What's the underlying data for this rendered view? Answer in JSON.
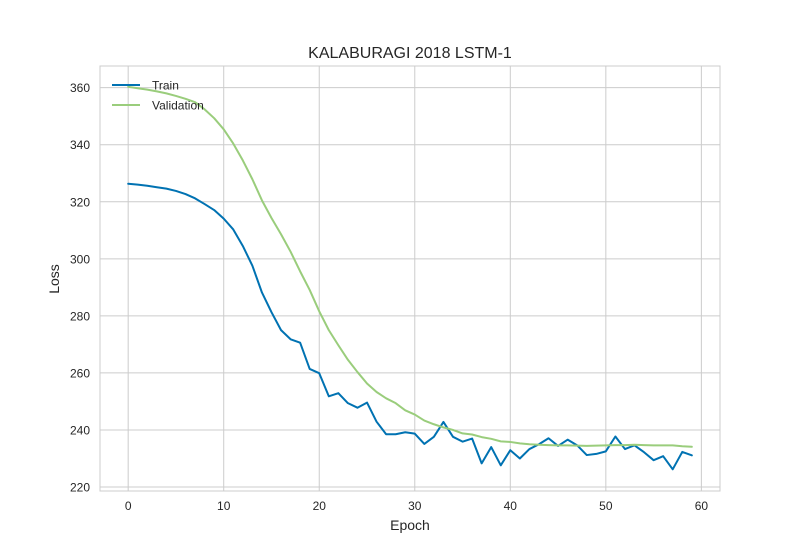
{
  "chart_data": {
    "type": "line",
    "title": "KALABURAGI 2018 LSTM-1",
    "xlabel": "Epoch",
    "ylabel": "Loss",
    "xlim": [
      -2.95,
      61.95
    ],
    "ylim": [
      218.6,
      367.6
    ],
    "xticks": [
      0,
      10,
      20,
      30,
      40,
      50,
      60
    ],
    "yticks": [
      220,
      240,
      260,
      280,
      300,
      320,
      340,
      360
    ],
    "grid": true,
    "legend_position": "top-left",
    "series": [
      {
        "name": "Train",
        "color": "#0072b2",
        "values": [
          326.3,
          326.0,
          325.6,
          325.1,
          324.6,
          323.8,
          322.7,
          321.2,
          319.2,
          317.1,
          314.1,
          310.3,
          304.5,
          297.6,
          288.2,
          281.3,
          275.0,
          271.8,
          270.6,
          261.4,
          259.9,
          251.8,
          252.9,
          249.4,
          247.8,
          249.6,
          242.9,
          238.5,
          238.5,
          239.2,
          238.7,
          235.1,
          237.6,
          242.8,
          237.6,
          235.9,
          237.0,
          228.3,
          234.0,
          227.6,
          232.9,
          230.0,
          233.3,
          235.0,
          237.1,
          234.4,
          236.6,
          234.6,
          231.2,
          231.6,
          232.5,
          237.7,
          233.3,
          234.6,
          232.2,
          229.4,
          230.8,
          226.2,
          232.3,
          231.1
        ]
      },
      {
        "name": "Validation",
        "color": "#9acd7c",
        "values": [
          360.3,
          359.8,
          359.3,
          358.7,
          358.0,
          357.1,
          356.1,
          354.9,
          352.4,
          349.3,
          345.4,
          340.4,
          334.5,
          327.9,
          320.5,
          314.3,
          308.6,
          302.5,
          295.6,
          289.1,
          281.6,
          275.0,
          269.7,
          264.6,
          260.3,
          256.3,
          253.3,
          251.1,
          249.4,
          246.9,
          245.4,
          243.3,
          242.0,
          240.9,
          240.0,
          238.8,
          238.4,
          237.5,
          236.9,
          236.0,
          235.8,
          235.3,
          235.0,
          234.8,
          234.7,
          234.6,
          234.6,
          234.5,
          234.4,
          234.5,
          234.6,
          234.7,
          234.7,
          234.8,
          234.7,
          234.6,
          234.6,
          234.6,
          234.3,
          234.1
        ]
      }
    ]
  }
}
